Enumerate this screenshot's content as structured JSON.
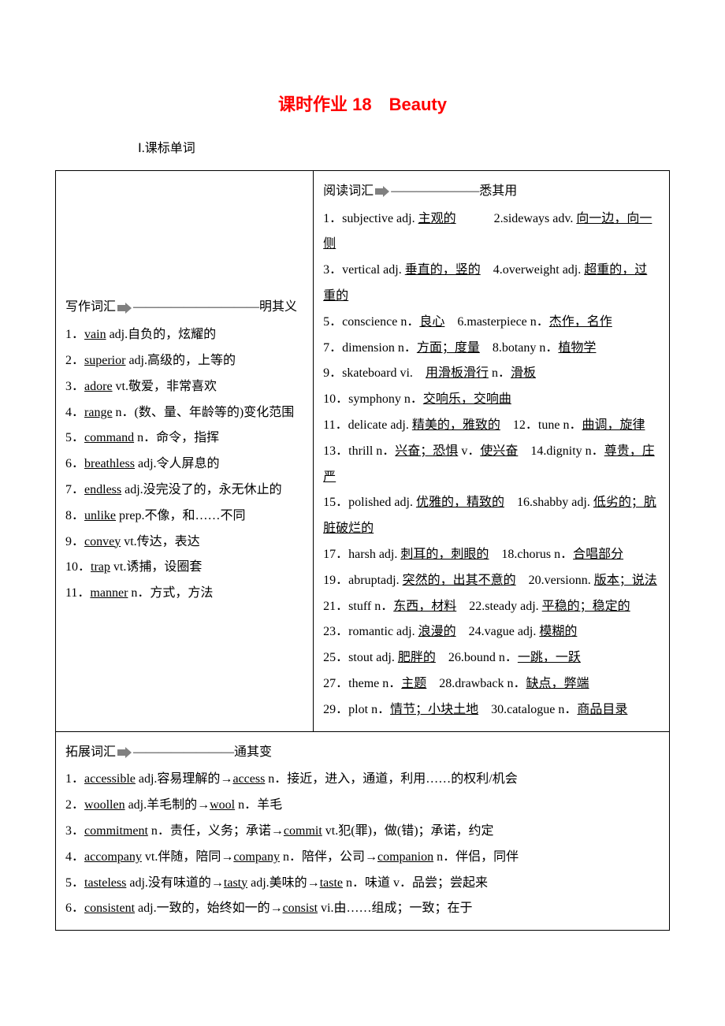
{
  "title": "课时作业 18　Beauty",
  "section1": "Ⅰ.课标单词",
  "left": {
    "heading_prefix": "写作词汇",
    "heading_suffix": "——————————明其义",
    "items": [
      {
        "num": "1．",
        "word": "vain",
        "rest": " adj.自负的，炫耀的"
      },
      {
        "num": "2．",
        "word": "superior",
        "rest": " adj.高级的，上等的"
      },
      {
        "num": "3．",
        "word": "adore",
        "rest": " vt.敬爱，非常喜欢"
      },
      {
        "num": "4．",
        "word": "range",
        "rest": " n．(数、量、年龄等的)变化范围"
      },
      {
        "num": "5．",
        "word": "command",
        "rest": " n．命令，指挥"
      },
      {
        "num": "6．",
        "word": "breathless",
        "rest": " adj.令人屏息的"
      },
      {
        "num": "7．",
        "word": "endless",
        "rest": " adj.没完没了的，永无休止的"
      },
      {
        "num": "8．",
        "word": "unlike",
        "rest": " prep.不像，和……不同"
      },
      {
        "num": "9．",
        "word": "convey",
        "rest": " vt.传达，表达"
      },
      {
        "num": "10．",
        "word": "trap",
        "rest": " vt.诱捕，设圈套"
      },
      {
        "num": "11．",
        "word": "manner",
        "rest": " n．方式，方法"
      }
    ]
  },
  "right": {
    "heading_prefix": "阅读词汇",
    "heading_suffix": "———————悉其用",
    "lines": [
      [
        {
          "t": "1．subjective adj. "
        },
        {
          "t": "主观的",
          "u": true
        },
        {
          "t": "　　　2.sideways adv. "
        },
        {
          "t": "向一边，向一侧",
          "u": true
        }
      ],
      [
        {
          "t": "3．vertical adj. "
        },
        {
          "t": "垂直的，竖的",
          "u": true
        },
        {
          "t": "　4.overweight adj. "
        },
        {
          "t": "超重的，过重的",
          "u": true
        }
      ],
      [
        {
          "t": "5．conscience n．"
        },
        {
          "t": "良心",
          "u": true
        },
        {
          "t": "　6.masterpiece n．"
        },
        {
          "t": "杰作，名作",
          "u": true
        }
      ],
      [
        {
          "t": "7．dimension n．"
        },
        {
          "t": "方面；度量",
          "u": true
        },
        {
          "t": "　8.botany n．"
        },
        {
          "t": "植物学",
          "u": true
        }
      ],
      [
        {
          "t": "9．skateboard vi.　"
        },
        {
          "t": "用滑板滑行",
          "u": true
        },
        {
          "t": " n．"
        },
        {
          "t": "滑板",
          "u": true
        }
      ],
      [
        {
          "t": "10．symphony n．"
        },
        {
          "t": "交响乐，交响曲",
          "u": true
        }
      ],
      [
        {
          "t": "11．delicate adj. "
        },
        {
          "t": "精美的，雅致的",
          "u": true
        },
        {
          "t": "　12．tune n．"
        },
        {
          "t": "曲调，旋律",
          "u": true
        }
      ],
      [
        {
          "t": "13．thrill n．"
        },
        {
          "t": "兴奋；恐惧",
          "u": true
        },
        {
          "t": " v．"
        },
        {
          "t": "使兴奋",
          "u": true
        },
        {
          "t": "　14.dignity n．"
        },
        {
          "t": "尊贵，庄严",
          "u": true
        }
      ],
      [
        {
          "t": "15．polished adj. "
        },
        {
          "t": "优雅的，精致的",
          "u": true
        },
        {
          "t": "　16.shabby adj. "
        },
        {
          "t": "低劣的；肮脏破烂的",
          "u": true
        }
      ],
      [
        {
          "t": "17．harsh adj. "
        },
        {
          "t": "刺耳的，刺眼的",
          "u": true
        },
        {
          "t": "　18.chorus n．"
        },
        {
          "t": "合唱部分",
          "u": true
        }
      ],
      [
        {
          "t": "19．abruptadj. "
        },
        {
          "t": "突然的，出其不意的",
          "u": true
        },
        {
          "t": "　20.versionn. "
        },
        {
          "t": "版本；说法",
          "u": true
        }
      ],
      [
        {
          "t": "21．stuff n．"
        },
        {
          "t": "东西，材料",
          "u": true
        },
        {
          "t": "　22.steady adj. "
        },
        {
          "t": "平稳的；稳定的",
          "u": true
        }
      ],
      [
        {
          "t": "23．romantic adj. "
        },
        {
          "t": "浪漫的",
          "u": true
        },
        {
          "t": "　24.vague adj. "
        },
        {
          "t": "模糊的",
          "u": true
        }
      ],
      [
        {
          "t": "25．stout adj. "
        },
        {
          "t": "肥胖的",
          "u": true
        },
        {
          "t": "　26.bound n．"
        },
        {
          "t": "一跳，一跃",
          "u": true
        }
      ],
      [
        {
          "t": "27．theme n．"
        },
        {
          "t": "主题",
          "u": true
        },
        {
          "t": "　28.drawback n．"
        },
        {
          "t": "缺点，弊端",
          "u": true
        }
      ],
      [
        {
          "t": "29．plot n．"
        },
        {
          "t": "情节；小块土地",
          "u": true
        },
        {
          "t": "　30.catalogue n．"
        },
        {
          "t": "商品目录",
          "u": true
        }
      ]
    ]
  },
  "bottom": {
    "heading_prefix": "拓展词汇",
    "heading_suffix": "————————通其变",
    "lines": [
      [
        {
          "t": "1．"
        },
        {
          "t": "accessible",
          "u": true
        },
        {
          "t": " adj.容易理解的→"
        },
        {
          "t": "access",
          "u": true
        },
        {
          "t": " n．接近，进入，通道，利用……的权利/机会"
        }
      ],
      [
        {
          "t": "2．"
        },
        {
          "t": "woollen",
          "u": true
        },
        {
          "t": " adj.羊毛制的→"
        },
        {
          "t": "wool",
          "u": true
        },
        {
          "t": " n．羊毛"
        }
      ],
      [
        {
          "t": "3．"
        },
        {
          "t": "commitment",
          "u": true
        },
        {
          "t": " n．责任，义务；承诺→"
        },
        {
          "t": "commit",
          "u": true
        },
        {
          "t": " vt.犯(罪)，做(错)；承诺，约定"
        }
      ],
      [
        {
          "t": "4．"
        },
        {
          "t": "accompany",
          "u": true
        },
        {
          "t": " vt.伴随，陪同→"
        },
        {
          "t": "company",
          "u": true
        },
        {
          "t": " n．陪伴，公司→"
        },
        {
          "t": "companion",
          "u": true
        },
        {
          "t": " n．伴侣，同伴"
        }
      ],
      [
        {
          "t": "5．"
        },
        {
          "t": "tasteless",
          "u": true
        },
        {
          "t": " adj.没有味道的→"
        },
        {
          "t": "tasty",
          "u": true
        },
        {
          "t": " adj.美味的→"
        },
        {
          "t": "taste",
          "u": true
        },
        {
          "t": " n．味道 v．品尝；尝起来"
        }
      ],
      [
        {
          "t": "6．"
        },
        {
          "t": "consistent",
          "u": true
        },
        {
          "t": " adj.一致的，始终如一的→"
        },
        {
          "t": "consist",
          "u": true
        },
        {
          "t": " vi.由……组成；一致；在于"
        }
      ]
    ]
  }
}
